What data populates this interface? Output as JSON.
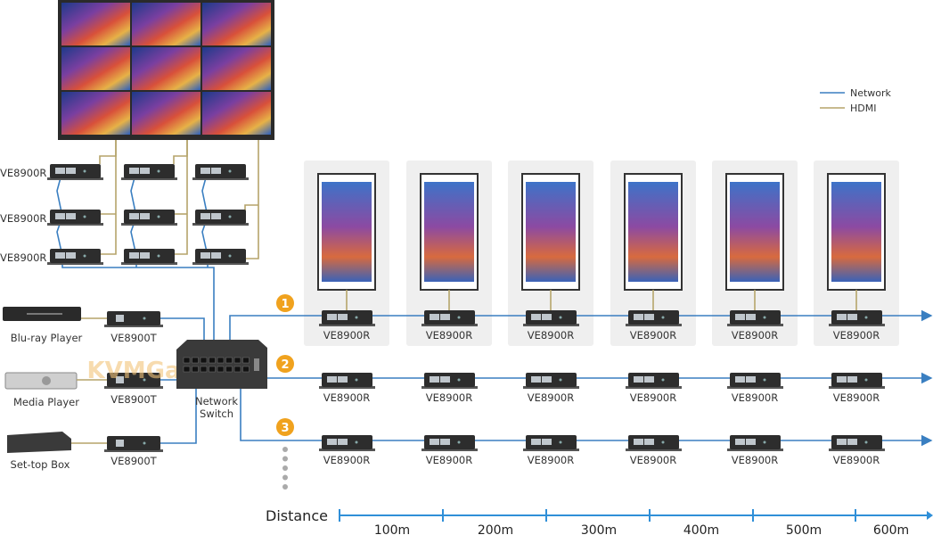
{
  "legend": [
    {
      "label": "Network",
      "color": "#3a7fc1"
    },
    {
      "label": "HDMI",
      "color": "#b5a46a"
    }
  ],
  "colors": {
    "network": "#3a7fc1",
    "hdmi": "#b5a46a",
    "badge": "#f0a21e",
    "panel": "#efefef",
    "axis": "#2f8fd8"
  },
  "wall_receivers": {
    "row_labels": [
      "VE8900R",
      "VE8900R",
      "VE8900R"
    ]
  },
  "sources": [
    {
      "device": "Blu-ray Player",
      "transmitter": "VE8900T"
    },
    {
      "device": "Media Player",
      "transmitter": "VE8900T"
    },
    {
      "device": "Set-top Box",
      "transmitter": "VE8900T"
    }
  ],
  "switch": {
    "label_line1": "Network",
    "label_line2": "Switch"
  },
  "chains": [
    {
      "badge": "1",
      "receivers": [
        "VE8900R",
        "VE8900R",
        "VE8900R",
        "VE8900R",
        "VE8900R",
        "VE8900R"
      ]
    },
    {
      "badge": "2",
      "receivers": [
        "VE8900R",
        "VE8900R",
        "VE8900R",
        "VE8900R",
        "VE8900R",
        "VE8900R"
      ]
    },
    {
      "badge": "3",
      "receivers": [
        "VE8900R",
        "VE8900R",
        "VE8900R",
        "VE8900R",
        "VE8900R",
        "VE8900R"
      ]
    }
  ],
  "distance": {
    "label": "Distance",
    "ticks": [
      "100m",
      "200m",
      "300m",
      "400m",
      "500m",
      "600m"
    ]
  },
  "watermark": "KVMGa"
}
